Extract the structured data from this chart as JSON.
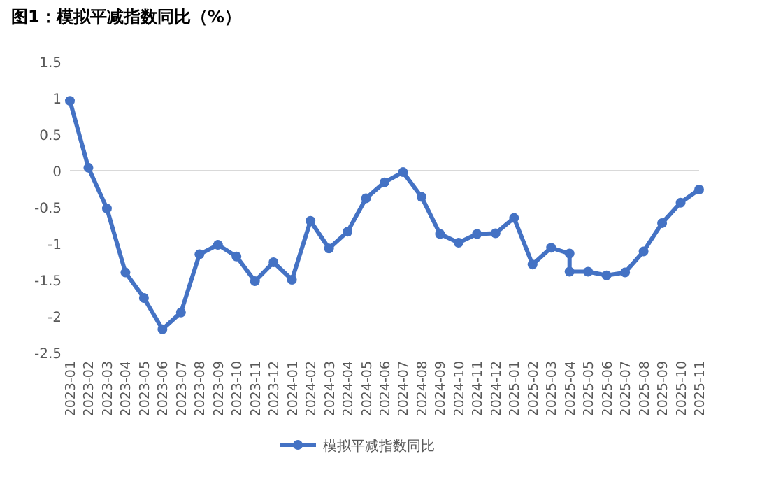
{
  "chart_data": {
    "type": "line",
    "title": "图1：模拟平减指数同比（%）",
    "x": [
      "2023-01",
      "2023-02",
      "2023-03",
      "2023-04",
      "2023-05",
      "2023-06",
      "2023-07",
      "2023-08",
      "2023-09",
      "2023-10",
      "2023-11",
      "2023-12",
      "2024-01",
      "2024-02",
      "2024-03",
      "2024-04",
      "2024-05",
      "2024-06",
      "2024-07",
      "2024-08",
      "2024-09",
      "2024-10",
      "2024-11",
      "2024-12",
      "2025-01",
      "2025-02",
      "2025-03",
      "2025-04",
      "2025-04",
      "2025-05",
      "2025-06",
      "2025-07",
      "2025-08",
      "2025-09",
      "2025-10",
      "2025-11"
    ],
    "series": [
      {
        "name": "模拟平减指数同比",
        "color": "#4472c4",
        "values": [
          0.96,
          0.04,
          -0.52,
          -1.4,
          -1.75,
          -2.18,
          -1.95,
          -1.15,
          -1.02,
          -1.18,
          -1.52,
          -1.26,
          -1.5,
          -0.69,
          -1.07,
          -0.84,
          -0.38,
          -0.16,
          -0.02,
          -0.36,
          -0.87,
          -0.99,
          -0.87,
          -0.86,
          -0.65,
          -1.29,
          -1.06,
          -1.14,
          -1.39,
          -1.39,
          -1.44,
          -1.4,
          -1.11,
          -0.72,
          -0.44,
          -0.26
        ]
      }
    ],
    "xlim": [
      "2023-01",
      "2025-11"
    ],
    "xticks": [
      "2023-01",
      "2023-02",
      "2023-03",
      "2023-04",
      "2023-05",
      "2023-06",
      "2023-07",
      "2023-08",
      "2023-09",
      "2023-10",
      "2023-11",
      "2023-12",
      "2024-01",
      "2024-02",
      "2024-03",
      "2024-04",
      "2024-05",
      "2024-06",
      "2024-07",
      "2024-08",
      "2024-09",
      "2024-10",
      "2024-11",
      "2024-12",
      "2025-01",
      "2025-02",
      "2025-03",
      "2025-04",
      "2025-05",
      "2025-06",
      "2025-07",
      "2025-08",
      "2025-09",
      "2025-10",
      "2025-11"
    ],
    "ylim": [
      -2.5,
      1.5
    ],
    "yticks": [
      -2.5,
      -2,
      -1.5,
      -1,
      -0.5,
      0,
      0.5,
      1,
      1.5
    ],
    "ref_lines": [
      {
        "axis": "y",
        "value": 0,
        "color": "#d9d9d9"
      }
    ],
    "legend": "bottom",
    "marker": "circle",
    "line_style": "solid"
  }
}
